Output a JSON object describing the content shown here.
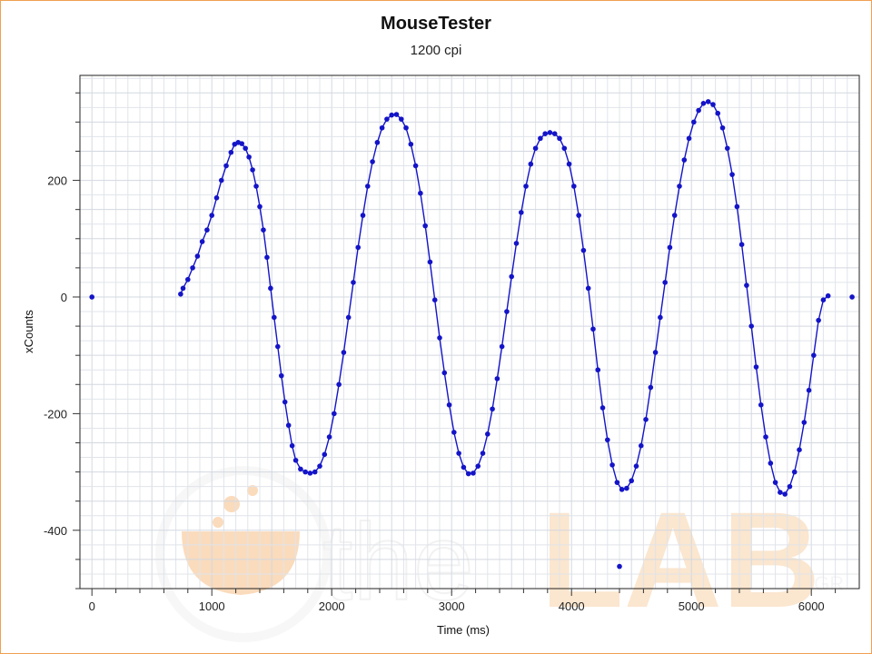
{
  "chart_data": {
    "type": "scatter",
    "title": "MouseTester",
    "subtitle": "1200 cpi",
    "xlabel": "Time (ms)",
    "ylabel": "xCounts",
    "xlim": [
      -100,
      6400
    ],
    "ylim": [
      -500,
      380
    ],
    "xticks": [
      0,
      1000,
      2000,
      3000,
      4000,
      5000,
      6000
    ],
    "yticks": [
      -400,
      -200,
      0,
      200
    ],
    "grid": true,
    "series": [
      {
        "color": "#1414c8",
        "points": [
          [
            0,
            0
          ],
          [
            740,
            5
          ],
          [
            760,
            15
          ],
          [
            800,
            30
          ],
          [
            840,
            50
          ],
          [
            880,
            70
          ],
          [
            920,
            95
          ],
          [
            960,
            115
          ],
          [
            1000,
            140
          ],
          [
            1040,
            170
          ],
          [
            1080,
            200
          ],
          [
            1120,
            225
          ],
          [
            1160,
            248
          ],
          [
            1190,
            262
          ],
          [
            1220,
            265
          ],
          [
            1250,
            263
          ],
          [
            1280,
            255
          ],
          [
            1310,
            240
          ],
          [
            1340,
            218
          ],
          [
            1370,
            190
          ],
          [
            1400,
            155
          ],
          [
            1430,
            115
          ],
          [
            1460,
            68
          ],
          [
            1490,
            15
          ],
          [
            1520,
            -35
          ],
          [
            1550,
            -85
          ],
          [
            1580,
            -135
          ],
          [
            1610,
            -180
          ],
          [
            1640,
            -220
          ],
          [
            1670,
            -255
          ],
          [
            1700,
            -280
          ],
          [
            1740,
            -295
          ],
          [
            1780,
            -300
          ],
          [
            1820,
            -302
          ],
          [
            1860,
            -300
          ],
          [
            1900,
            -290
          ],
          [
            1940,
            -270
          ],
          [
            1980,
            -240
          ],
          [
            2020,
            -200
          ],
          [
            2060,
            -150
          ],
          [
            2100,
            -95
          ],
          [
            2140,
            -35
          ],
          [
            2180,
            25
          ],
          [
            2220,
            85
          ],
          [
            2260,
            140
          ],
          [
            2300,
            190
          ],
          [
            2340,
            232
          ],
          [
            2380,
            265
          ],
          [
            2420,
            290
          ],
          [
            2460,
            305
          ],
          [
            2500,
            312
          ],
          [
            2540,
            313
          ],
          [
            2580,
            305
          ],
          [
            2620,
            290
          ],
          [
            2660,
            262
          ],
          [
            2700,
            225
          ],
          [
            2740,
            178
          ],
          [
            2780,
            122
          ],
          [
            2820,
            60
          ],
          [
            2860,
            -5
          ],
          [
            2900,
            -70
          ],
          [
            2940,
            -130
          ],
          [
            2980,
            -185
          ],
          [
            3020,
            -232
          ],
          [
            3060,
            -268
          ],
          [
            3100,
            -292
          ],
          [
            3140,
            -303
          ],
          [
            3180,
            -302
          ],
          [
            3220,
            -290
          ],
          [
            3260,
            -268
          ],
          [
            3300,
            -235
          ],
          [
            3340,
            -192
          ],
          [
            3380,
            -140
          ],
          [
            3420,
            -85
          ],
          [
            3460,
            -25
          ],
          [
            3500,
            35
          ],
          [
            3540,
            92
          ],
          [
            3580,
            145
          ],
          [
            3620,
            190
          ],
          [
            3660,
            228
          ],
          [
            3700,
            255
          ],
          [
            3740,
            272
          ],
          [
            3780,
            280
          ],
          [
            3820,
            282
          ],
          [
            3860,
            280
          ],
          [
            3900,
            272
          ],
          [
            3940,
            255
          ],
          [
            3980,
            228
          ],
          [
            4020,
            190
          ],
          [
            4060,
            140
          ],
          [
            4100,
            80
          ],
          [
            4140,
            15
          ],
          [
            4180,
            -55
          ],
          [
            4220,
            -125
          ],
          [
            4260,
            -190
          ],
          [
            4300,
            -245
          ],
          [
            4340,
            -288
          ],
          [
            4380,
            -318
          ],
          [
            4420,
            -330
          ],
          [
            4460,
            -328
          ],
          [
            4500,
            -315
          ],
          [
            4540,
            -290
          ],
          [
            4580,
            -255
          ],
          [
            4620,
            -210
          ],
          [
            4660,
            -155
          ],
          [
            4700,
            -95
          ],
          [
            4740,
            -35
          ],
          [
            4780,
            25
          ],
          [
            4820,
            85
          ],
          [
            4860,
            140
          ],
          [
            4900,
            190
          ],
          [
            4940,
            235
          ],
          [
            4980,
            272
          ],
          [
            5020,
            300
          ],
          [
            5060,
            320
          ],
          [
            5100,
            332
          ],
          [
            5140,
            335
          ],
          [
            5180,
            330
          ],
          [
            5220,
            315
          ],
          [
            5260,
            290
          ],
          [
            5300,
            255
          ],
          [
            5340,
            210
          ],
          [
            5380,
            155
          ],
          [
            5420,
            90
          ],
          [
            5460,
            20
          ],
          [
            5500,
            -50
          ],
          [
            5540,
            -120
          ],
          [
            5580,
            -185
          ],
          [
            5620,
            -240
          ],
          [
            5660,
            -285
          ],
          [
            5700,
            -318
          ],
          [
            5740,
            -335
          ],
          [
            5780,
            -338
          ],
          [
            5820,
            -325
          ],
          [
            5860,
            -300
          ],
          [
            5900,
            -262
          ],
          [
            5940,
            -215
          ],
          [
            5980,
            -160
          ],
          [
            6020,
            -100
          ],
          [
            6060,
            -40
          ],
          [
            6100,
            -5
          ],
          [
            6140,
            2
          ],
          [
            6340,
            0
          ],
          [
            4400,
            -462
          ]
        ]
      }
    ]
  },
  "watermark": {
    "text_the": "the",
    "text_lab": "LAB",
    "text_gr": ".GR",
    "color": "#f5c48e"
  },
  "colors": {
    "series": "#1414c8",
    "grid": "#e0e4ea",
    "frame": "#f0a050"
  }
}
